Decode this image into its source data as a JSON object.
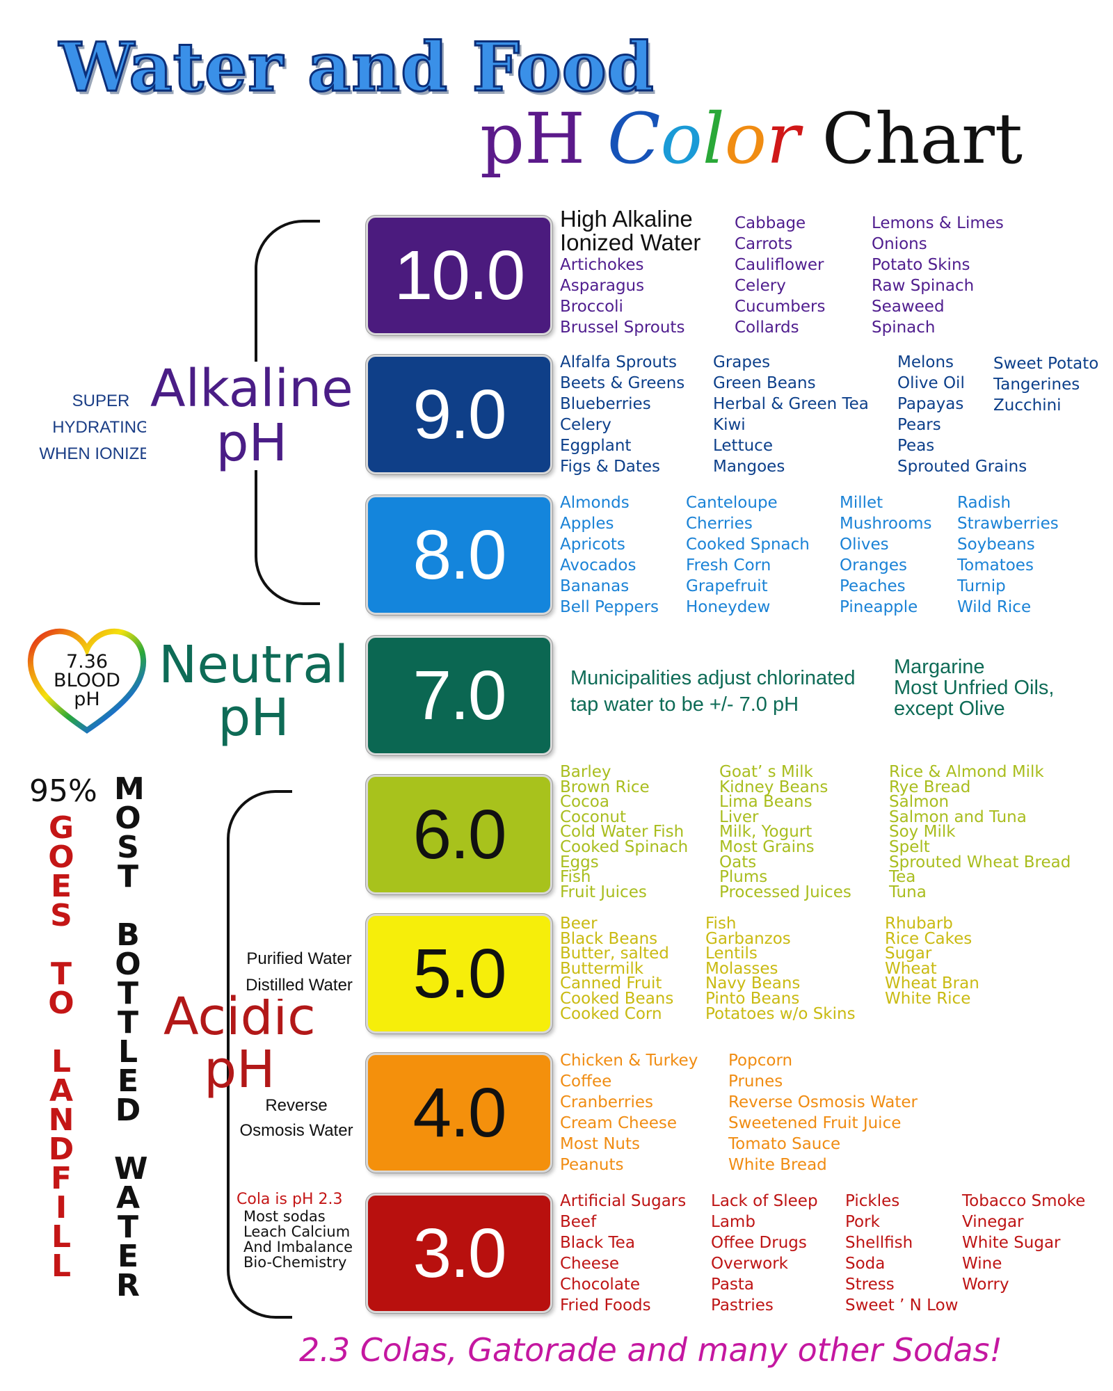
{
  "title": {
    "line1": "Water and Food",
    "ph": "pH",
    "color_letters": [
      {
        "ch": "C",
        "color": "#1653b8"
      },
      {
        "ch": "o",
        "color": "#1a9ad6"
      },
      {
        "ch": "l",
        "color": "#2aa838"
      },
      {
        "ch": "o",
        "color": "#f08c12"
      },
      {
        "ch": "r",
        "color": "#d01818"
      }
    ],
    "chart": "Chart"
  },
  "levels": [
    {
      "value": "10.0",
      "color": "#4b1b7e",
      "text_color": "#ffffff"
    },
    {
      "value": "9.0",
      "color": "#0f3f88",
      "text_color": "#ffffff"
    },
    {
      "value": "8.0",
      "color": "#1485dc",
      "text_color": "#ffffff"
    },
    {
      "value": "7.0",
      "color": "#0b6752",
      "text_color": "#ffffff"
    },
    {
      "value": "6.0",
      "color": "#a8c21c",
      "text_color": "#111111"
    },
    {
      "value": "5.0",
      "color": "#f6ee0a",
      "text_color": "#111111"
    },
    {
      "value": "4.0",
      "color": "#f4900c",
      "text_color": "#111111"
    },
    {
      "value": "3.0",
      "color": "#b8100e",
      "text_color": "#ffffff"
    }
  ],
  "ph10": {
    "heading": [
      "High Alkaline",
      "Ionized Water"
    ],
    "col1": [
      "Artichokes",
      "Asparagus",
      "Broccoli",
      "Brussel Sprouts"
    ],
    "col2": [
      "Cabbage",
      "Carrots",
      "Cauliflower",
      "Celery",
      "Cucumbers",
      "Collards"
    ],
    "col3": [
      "Lemons & Limes",
      "Onions",
      "Potato Skins",
      "Raw Spinach",
      "Seaweed",
      "Spinach"
    ]
  },
  "ph9": {
    "col1": [
      "Alfalfa Sprouts",
      "Beets & Greens",
      "Blueberries",
      "Celery",
      "Eggplant",
      "Figs & Dates"
    ],
    "col2": [
      "Grapes",
      "Green Beans",
      "Herbal & Green Tea",
      "Kiwi",
      "Lettuce",
      "Mangoes"
    ],
    "col3": [
      "Melons",
      "Olive Oil",
      "Papayas",
      "Pears",
      "Peas",
      "Sprouted Grains"
    ],
    "col4": [
      "Sweet Potato",
      "Tangerines",
      "Zucchini"
    ]
  },
  "ph8": {
    "col1": [
      "Almonds",
      "Apples",
      "Apricots",
      "Avocados",
      "Bananas",
      "Bell Peppers"
    ],
    "col2": [
      "Canteloupe",
      "Cherries",
      "Cooked Spnach",
      "Fresh Corn",
      "Grapefruit",
      "Honeydew"
    ],
    "col3": [
      "Millet",
      "Mushrooms",
      "Olives",
      "Oranges",
      "Peaches",
      "Pineapple"
    ],
    "col4": [
      "Radish",
      "Strawberries",
      "Soybeans",
      "Tomatoes",
      "Turnip",
      "Wild Rice"
    ]
  },
  "ph7": {
    "note": [
      "Municipalities adjust chlorinated",
      "tap water to be +/- 7.0 pH"
    ],
    "oils": [
      "Margarine",
      "Most Unfried Oils,",
      "except Olive"
    ]
  },
  "ph6": {
    "col1": [
      "Barley",
      "Brown Rice",
      "Cocoa",
      "Coconut",
      "Cold Water Fish",
      "Cooked Spinach",
      "Eggs",
      "Fish",
      "Fruit Juices"
    ],
    "col2": [
      "Goat’ s Milk",
      "Kidney Beans",
      "Lima Beans",
      "Liver",
      "Milk, Yogurt",
      "Most Grains",
      "Oats",
      "Plums",
      "Processed Juices"
    ],
    "col3": [
      "Rice & Almond Milk",
      "Rye Bread",
      "Salmon",
      "Salmon and Tuna",
      "Soy Milk",
      "Spelt",
      "Sprouted Wheat Bread",
      "Tea",
      "Tuna"
    ]
  },
  "ph5": {
    "col1": [
      "Beer",
      "Black Beans",
      "Butter, salted",
      "Buttermilk",
      "Canned Fruit",
      "Cooked Beans",
      "Cooked Corn"
    ],
    "col2": [
      "Fish",
      "Garbanzos",
      "Lentils",
      "Molasses",
      "Navy Beans",
      "Pinto Beans",
      "Potatoes w/o Skins"
    ],
    "col3": [
      "Rhubarb",
      "Rice Cakes",
      "Sugar",
      "Wheat",
      "Wheat Bran",
      "White Rice"
    ],
    "waters": [
      "Purified Water",
      "Distilled Water"
    ]
  },
  "ph4": {
    "col1": [
      "Chicken & Turkey",
      "Coffee",
      "Cranberries",
      "Cream Cheese",
      "Most Nuts",
      "Peanuts"
    ],
    "col2": [
      "Popcorn",
      "Prunes",
      "Reverse Osmosis Water",
      "Sweetened Fruit Juice",
      "Tomato Sauce",
      "White Bread"
    ],
    "water": [
      "Reverse",
      "Osmosis Water"
    ]
  },
  "ph3": {
    "col1": [
      "Artificial Sugars",
      "Beef",
      "Black Tea",
      "Cheese",
      "Chocolate",
      "Fried Foods"
    ],
    "col2": [
      "Lack of Sleep",
      "Lamb",
      "Offee Drugs",
      "Overwork",
      "Pasta",
      "Pastries"
    ],
    "col3": [
      "Pickles",
      "Pork",
      "Shellfish",
      "Soda",
      "Stress",
      "Sweet ’ N Low"
    ],
    "col4": [
      "Tobacco Smoke",
      "Vinegar",
      "White Sugar",
      "Wine",
      "Worry"
    ],
    "cola_heading": "Cola is pH 2.3",
    "cola_lines": [
      "Most sodas",
      "Leach Calcium",
      "And Imbalance",
      "Bio-Chemistry"
    ]
  },
  "labels": {
    "alkaline": [
      "Alkaline",
      "pH"
    ],
    "super": [
      "SUPER",
      "HYDRATING",
      "WHEN IONIZED"
    ],
    "neutral": [
      "Neutral",
      "pH"
    ],
    "acidic": [
      "Acidic",
      "pH"
    ],
    "blood": [
      "7.36",
      "BLOOD",
      "pH"
    ],
    "percent": "95%",
    "goes": "GOES TO LANDFILL",
    "most": "MOST BOTTLED WATER"
  },
  "footer": "2.3  Colas, Gatorade and many other Sodas!"
}
